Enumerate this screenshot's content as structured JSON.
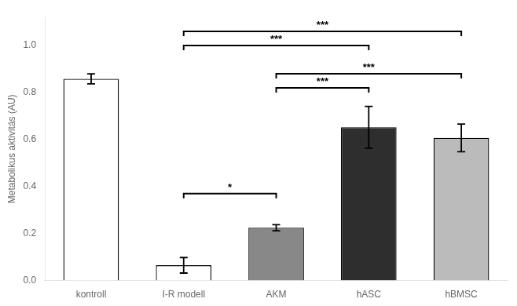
{
  "chart_data": {
    "type": "bar",
    "categories": [
      "kontroll",
      "I-R modell",
      "AKM",
      "hASC",
      "hBMSC"
    ],
    "values": [
      0.858,
      0.065,
      0.225,
      0.652,
      0.607
    ],
    "errors": [
      0.021,
      0.033,
      0.013,
      0.089,
      0.059
    ],
    "colors": [
      "white",
      "white",
      "#888888",
      "#2e2e2e",
      "#bbbbbb"
    ],
    "ylabel": "Metabolikus aktivitás (AU)",
    "ylim": [
      0,
      1.12
    ],
    "yticks": [
      {
        "value": 0,
        "label": "0.0"
      },
      0.2,
      0.4,
      0.6,
      0.8,
      {
        "value": 1,
        "label": "1.0"
      }
    ],
    "grid": false,
    "significance_brackets": [
      {
        "from": "I-R modell",
        "to": "hBMSC",
        "y": 1.06,
        "label": "***"
      },
      {
        "from": "I-R modell",
        "to": "hASC",
        "y": 1.0,
        "label": "***"
      },
      {
        "from": "AKM",
        "to": "hBMSC",
        "y": 0.88,
        "label": "***"
      },
      {
        "from": "AKM",
        "to": "hASC",
        "y": 0.82,
        "label": "***"
      },
      {
        "from": "I-R modell",
        "to": "AKM",
        "y": 0.37,
        "label": "*"
      }
    ]
  }
}
